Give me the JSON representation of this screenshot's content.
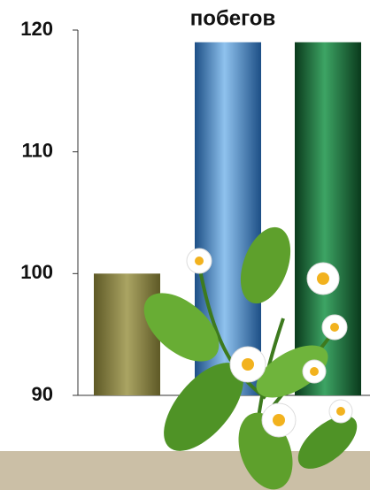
{
  "chart_data": {
    "type": "bar",
    "title": "побегов",
    "categories": [
      null,
      null,
      null
    ],
    "values": [
      100,
      119,
      119
    ],
    "colors": [
      "#8a8444",
      "#3a7cc0",
      "#17703a"
    ],
    "ylim": [
      90,
      120
    ],
    "yticks": [
      90,
      100,
      110,
      120
    ],
    "grid": false
  }
}
